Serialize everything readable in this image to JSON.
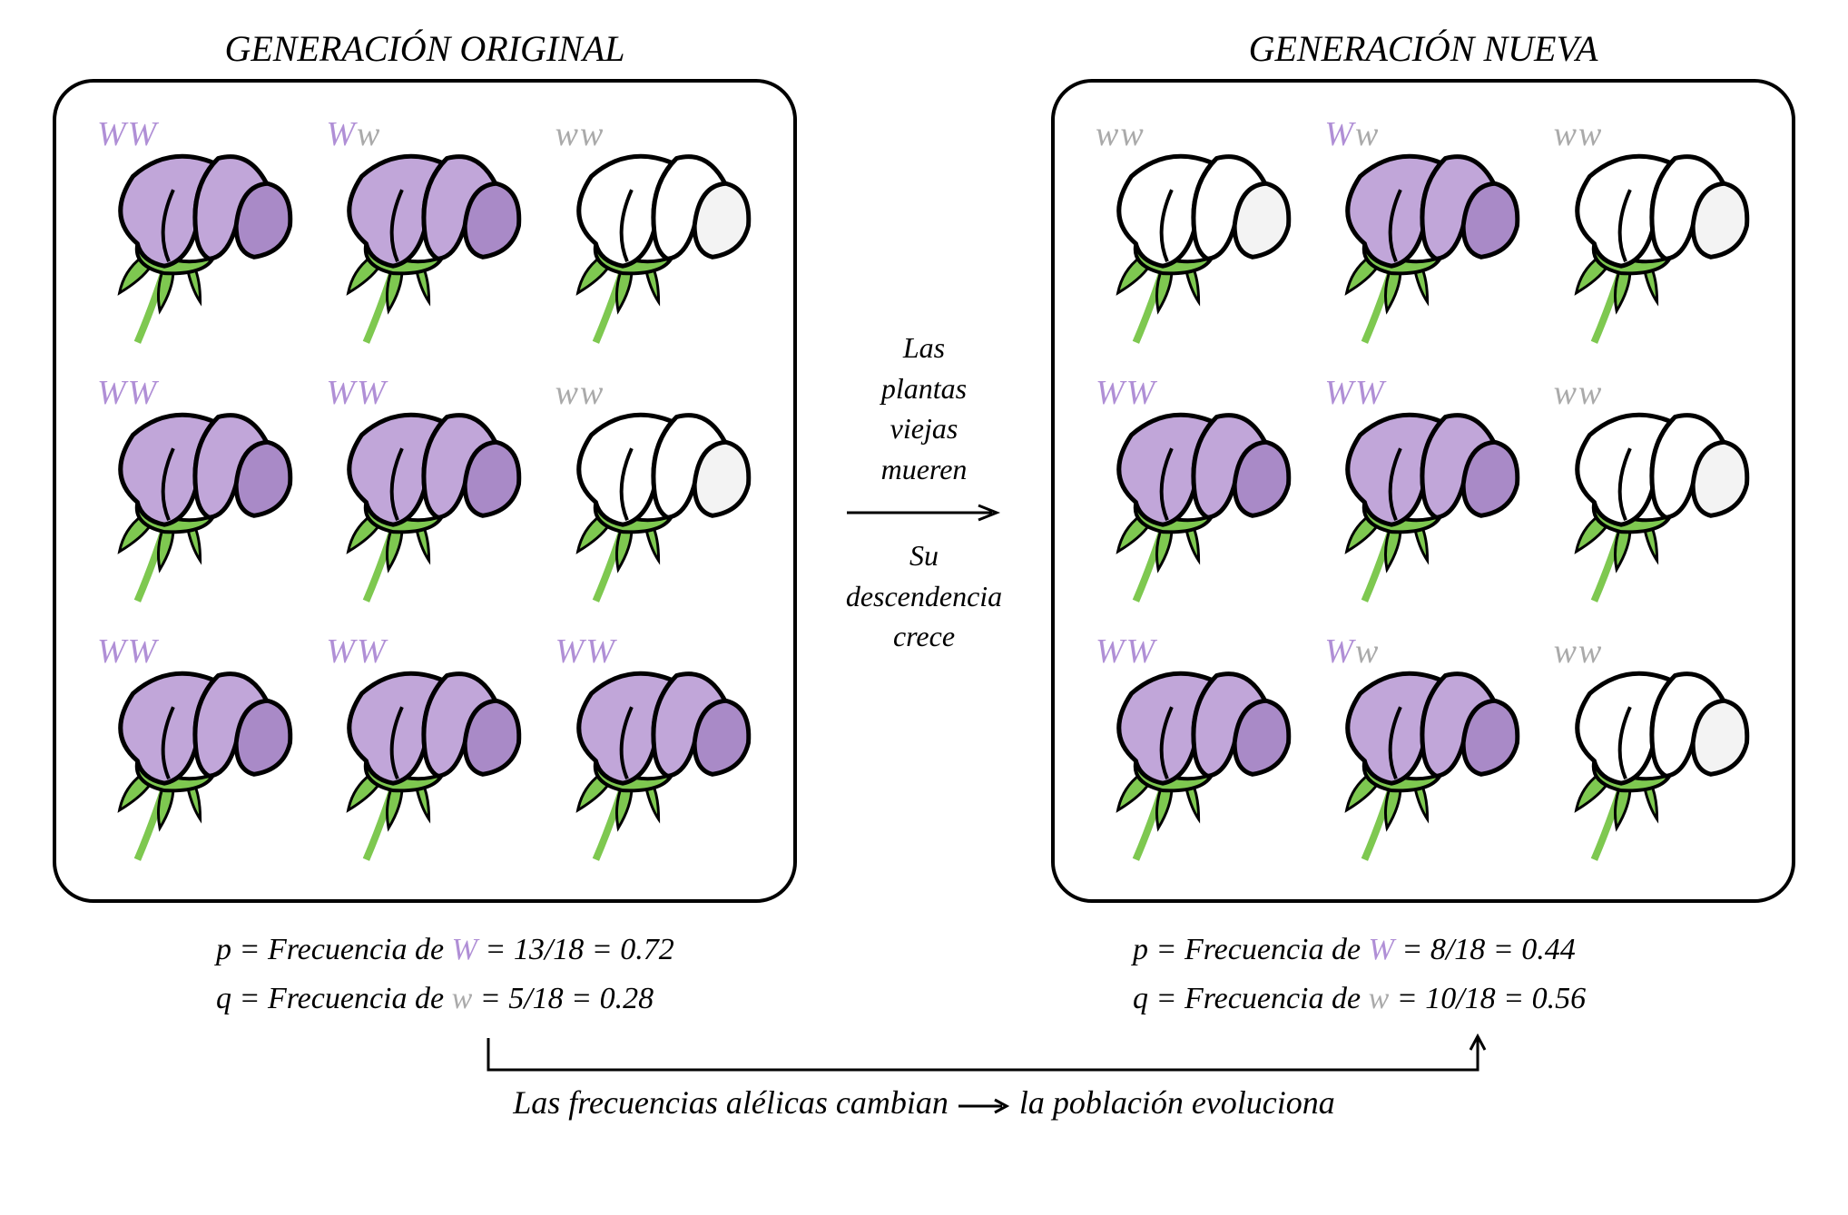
{
  "colors": {
    "purple_petal": "#c1a6d9",
    "purple_petal_dark": "#a98ac7",
    "white_petal": "#ffffff",
    "white_petal_shade": "#f3f3f3",
    "stem_green": "#7ec850",
    "outline": "#000000",
    "allele_W": "#b08fd6",
    "allele_w": "#aaaaaa",
    "text": "#000000",
    "background": "#ffffff"
  },
  "typography": {
    "family": "Comic Sans MS, Segoe Script, cursive",
    "title_size": 40,
    "genotype_size": 38,
    "middle_text_size": 32,
    "freq_size": 34,
    "bottom_size": 36
  },
  "panels": {
    "left": {
      "title": "GENERACIÓN ORIGINAL",
      "grid": [
        {
          "g1": "W",
          "g2": "W",
          "color": "purple"
        },
        {
          "g1": "W",
          "g2": "w",
          "color": "purple"
        },
        {
          "g1": "w",
          "g2": "w",
          "color": "white"
        },
        {
          "g1": "W",
          "g2": "W",
          "color": "purple"
        },
        {
          "g1": "W",
          "g2": "W",
          "color": "purple"
        },
        {
          "g1": "w",
          "g2": "w",
          "color": "white"
        },
        {
          "g1": "W",
          "g2": "W",
          "color": "purple"
        },
        {
          "g1": "W",
          "g2": "W",
          "color": "purple"
        },
        {
          "g1": "W",
          "g2": "W",
          "color": "purple"
        }
      ]
    },
    "right": {
      "title": "GENERACIÓN NUEVA",
      "grid": [
        {
          "g1": "w",
          "g2": "w",
          "color": "white"
        },
        {
          "g1": "W",
          "g2": "w",
          "color": "purple"
        },
        {
          "g1": "w",
          "g2": "w",
          "color": "white"
        },
        {
          "g1": "W",
          "g2": "W",
          "color": "purple"
        },
        {
          "g1": "W",
          "g2": "W",
          "color": "purple"
        },
        {
          "g1": "w",
          "g2": "w",
          "color": "white"
        },
        {
          "g1": "W",
          "g2": "W",
          "color": "purple"
        },
        {
          "g1": "W",
          "g2": "w",
          "color": "purple"
        },
        {
          "g1": "w",
          "g2": "w",
          "color": "white"
        }
      ]
    }
  },
  "middle": {
    "text_top": "Las\nplantas\nviejas\nmueren",
    "text_bottom": "Su\ndescendencia\ncrece"
  },
  "frequencies": {
    "left": {
      "p_label": "p = Frecuencia de ",
      "p_allele": "W",
      "p_value": " = 13/18 = 0.72",
      "q_label": "q = Frecuencia de ",
      "q_allele": "w",
      "q_value": " = 5/18 = 0.28"
    },
    "right": {
      "p_label": "p = Frecuencia de ",
      "p_allele": "W",
      "p_value": " = 8/18 = 0.44",
      "q_label": "q = Frecuencia de ",
      "q_allele": "w",
      "q_value": " = 10/18 = 0.56"
    }
  },
  "bottom": {
    "text_a": "Las frecuencias alélicas cambian ",
    "text_b": " la población evoluciona"
  }
}
